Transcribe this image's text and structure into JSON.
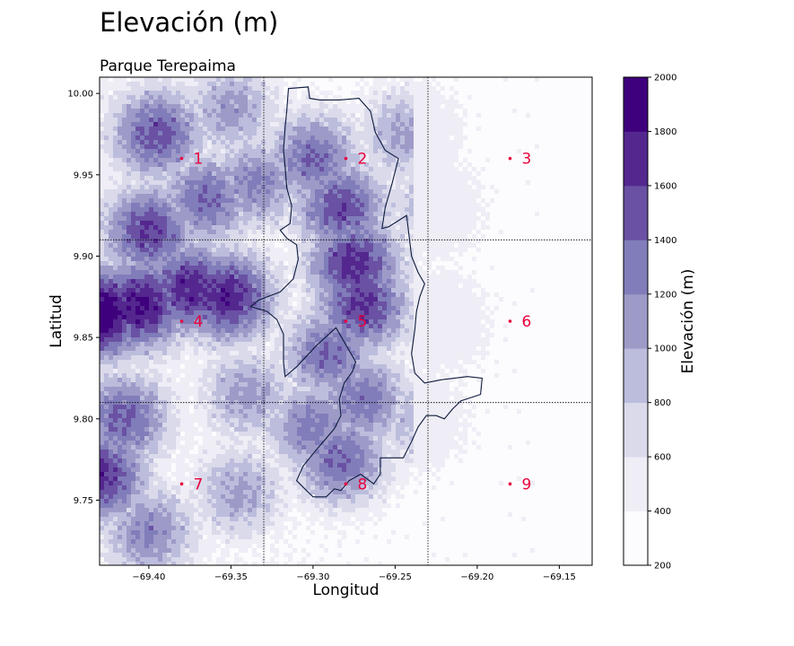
{
  "title": "Elevación (m)",
  "subtitle": "Parque Terepaima",
  "chart_data": {
    "type": "heatmap",
    "xlabel": "Longitud",
    "ylabel": "Latitud",
    "xlim": [
      -69.43,
      -69.13
    ],
    "ylim": [
      9.71,
      10.01
    ],
    "xticks": [
      -69.4,
      -69.35,
      -69.3,
      -69.25,
      -69.2,
      -69.15
    ],
    "xtick_labels": [
      "−69.40",
      "−69.35",
      "−69.30",
      "−69.25",
      "−69.20",
      "−69.15"
    ],
    "yticks": [
      9.75,
      9.8,
      9.85,
      9.9,
      9.95,
      10.0
    ],
    "ytick_labels": [
      "9.75",
      "9.80",
      "9.85",
      "9.90",
      "9.95",
      "10.00"
    ],
    "grid_lines_x": [
      -69.33,
      -69.23
    ],
    "grid_lines_y": [
      9.81,
      9.91
    ],
    "points": [
      {
        "label": "1",
        "lon": -69.38,
        "lat": 9.96
      },
      {
        "label": "2",
        "lon": -69.28,
        "lat": 9.96
      },
      {
        "label": "3",
        "lon": -69.18,
        "lat": 9.96
      },
      {
        "label": "4",
        "lon": -69.38,
        "lat": 9.86
      },
      {
        "label": "5",
        "lon": -69.28,
        "lat": 9.86
      },
      {
        "label": "6",
        "lon": -69.18,
        "lat": 9.86
      },
      {
        "label": "7",
        "lon": -69.38,
        "lat": 9.76
      },
      {
        "label": "8",
        "lon": -69.28,
        "lat": 9.76
      },
      {
        "label": "9",
        "lon": -69.18,
        "lat": 9.76
      }
    ],
    "point_color": "#e8003d",
    "park_boundary": [
      [
        -69.315,
        10.003
      ],
      [
        -69.303,
        10.004
      ],
      [
        -69.302,
        9.997
      ],
      [
        -69.296,
        9.996
      ],
      [
        -69.284,
        9.996
      ],
      [
        -69.272,
        9.997
      ],
      [
        -69.265,
        9.989
      ],
      [
        -69.262,
        9.976
      ],
      [
        -69.256,
        9.965
      ],
      [
        -69.248,
        9.96
      ],
      [
        -69.252,
        9.944
      ],
      [
        -69.256,
        9.93
      ],
      [
        -69.258,
        9.917
      ],
      [
        -69.254,
        9.918
      ],
      [
        -69.243,
        9.925
      ],
      [
        -69.24,
        9.9
      ],
      [
        -69.236,
        9.89
      ],
      [
        -69.232,
        9.883
      ],
      [
        -69.235,
        9.875
      ],
      [
        -69.237,
        9.866
      ],
      [
        -69.238,
        9.855
      ],
      [
        -69.24,
        9.84
      ],
      [
        -69.238,
        9.828
      ],
      [
        -69.232,
        9.822
      ],
      [
        -69.222,
        9.824
      ],
      [
        -69.206,
        9.826
      ],
      [
        -69.197,
        9.825
      ],
      [
        -69.198,
        9.815
      ],
      [
        -69.21,
        9.811
      ],
      [
        -69.215,
        9.806
      ],
      [
        -69.22,
        9.8
      ],
      [
        -69.225,
        9.802
      ],
      [
        -69.231,
        9.802
      ],
      [
        -69.236,
        9.795
      ],
      [
        -69.24,
        9.786
      ],
      [
        -69.245,
        9.776
      ],
      [
        -69.259,
        9.776
      ],
      [
        -69.259,
        9.766
      ],
      [
        -69.263,
        9.76
      ],
      [
        -69.271,
        9.766
      ],
      [
        -69.278,
        9.762
      ],
      [
        -69.283,
        9.756
      ],
      [
        -69.287,
        9.757
      ],
      [
        -69.292,
        9.752
      ],
      [
        -69.3,
        9.752
      ],
      [
        -69.305,
        9.757
      ],
      [
        -69.31,
        9.762
      ],
      [
        -69.306,
        9.771
      ],
      [
        -69.298,
        9.781
      ],
      [
        -69.292,
        9.788
      ],
      [
        -69.287,
        9.794
      ],
      [
        -69.283,
        9.802
      ],
      [
        -69.284,
        9.812
      ],
      [
        -69.281,
        9.822
      ],
      [
        -69.276,
        9.829
      ],
      [
        -69.274,
        9.835
      ],
      [
        -69.286,
        9.856
      ],
      [
        -69.298,
        9.845
      ],
      [
        -69.31,
        9.832
      ],
      [
        -69.317,
        9.826
      ],
      [
        -69.318,
        9.835
      ],
      [
        -69.318,
        9.852
      ],
      [
        -69.322,
        9.861
      ],
      [
        -69.328,
        9.866
      ],
      [
        -69.338,
        9.869
      ],
      [
        -69.333,
        9.873
      ],
      [
        -69.32,
        9.878
      ],
      [
        -69.312,
        9.886
      ],
      [
        -69.309,
        9.898
      ],
      [
        -69.31,
        9.907
      ],
      [
        -69.316,
        9.911
      ],
      [
        -69.32,
        9.916
      ],
      [
        -69.314,
        9.92
      ],
      [
        -69.313,
        9.931
      ],
      [
        -69.316,
        9.942
      ],
      [
        -69.317,
        9.955
      ],
      [
        -69.318,
        9.965
      ],
      [
        -69.317,
        9.979
      ],
      [
        -69.316,
        9.989
      ],
      [
        -69.315,
        10.003
      ]
    ],
    "colorbar": {
      "label": "Elevación (m)",
      "levels": [
        200,
        400,
        600,
        800,
        1000,
        1200,
        1400,
        1600,
        1800,
        2000
      ],
      "tick_labels": [
        "200",
        "400",
        "600",
        "800",
        "1000",
        "1200",
        "1400",
        "1600",
        "1800",
        "2000"
      ],
      "colors": [
        "#fcfbfd",
        "#efedf5",
        "#dadaeb",
        "#bcbddc",
        "#9e9ac8",
        "#807dba",
        "#6a51a3",
        "#54278f",
        "#3f007d"
      ]
    },
    "relief_peaks": [
      {
        "lon": -69.43,
        "lat": 9.865,
        "elev": 1850
      },
      {
        "lon": -69.405,
        "lat": 9.87,
        "elev": 1650
      },
      {
        "lon": -69.375,
        "lat": 9.88,
        "elev": 1550
      },
      {
        "lon": -69.352,
        "lat": 9.875,
        "elev": 1550
      },
      {
        "lon": -69.395,
        "lat": 9.975,
        "elev": 1300
      },
      {
        "lon": -69.4,
        "lat": 9.915,
        "elev": 1400
      },
      {
        "lon": -69.365,
        "lat": 9.935,
        "elev": 1200
      },
      {
        "lon": -69.335,
        "lat": 9.945,
        "elev": 1050
      },
      {
        "lon": -69.3,
        "lat": 9.96,
        "elev": 1200
      },
      {
        "lon": -69.283,
        "lat": 9.93,
        "elev": 1350
      },
      {
        "lon": -69.275,
        "lat": 9.895,
        "elev": 1500
      },
      {
        "lon": -69.27,
        "lat": 9.87,
        "elev": 1450
      },
      {
        "lon": -69.29,
        "lat": 9.84,
        "elev": 1200
      },
      {
        "lon": -69.27,
        "lat": 9.812,
        "elev": 1150
      },
      {
        "lon": -69.283,
        "lat": 9.775,
        "elev": 1200
      },
      {
        "lon": -69.3,
        "lat": 9.795,
        "elev": 1100
      },
      {
        "lon": -69.34,
        "lat": 9.815,
        "elev": 900
      },
      {
        "lon": -69.43,
        "lat": 9.765,
        "elev": 1500
      },
      {
        "lon": -69.415,
        "lat": 9.8,
        "elev": 1250
      },
      {
        "lon": -69.4,
        "lat": 9.73,
        "elev": 1050
      },
      {
        "lon": -69.345,
        "lat": 9.755,
        "elev": 850
      },
      {
        "lon": -69.35,
        "lat": 9.99,
        "elev": 900
      },
      {
        "lon": -69.245,
        "lat": 9.975,
        "elev": 850
      },
      {
        "lon": -69.23,
        "lat": 9.93,
        "elev": 700
      },
      {
        "lon": -69.225,
        "lat": 9.86,
        "elev": 650
      },
      {
        "lon": -69.24,
        "lat": 9.8,
        "elev": 700
      }
    ]
  }
}
